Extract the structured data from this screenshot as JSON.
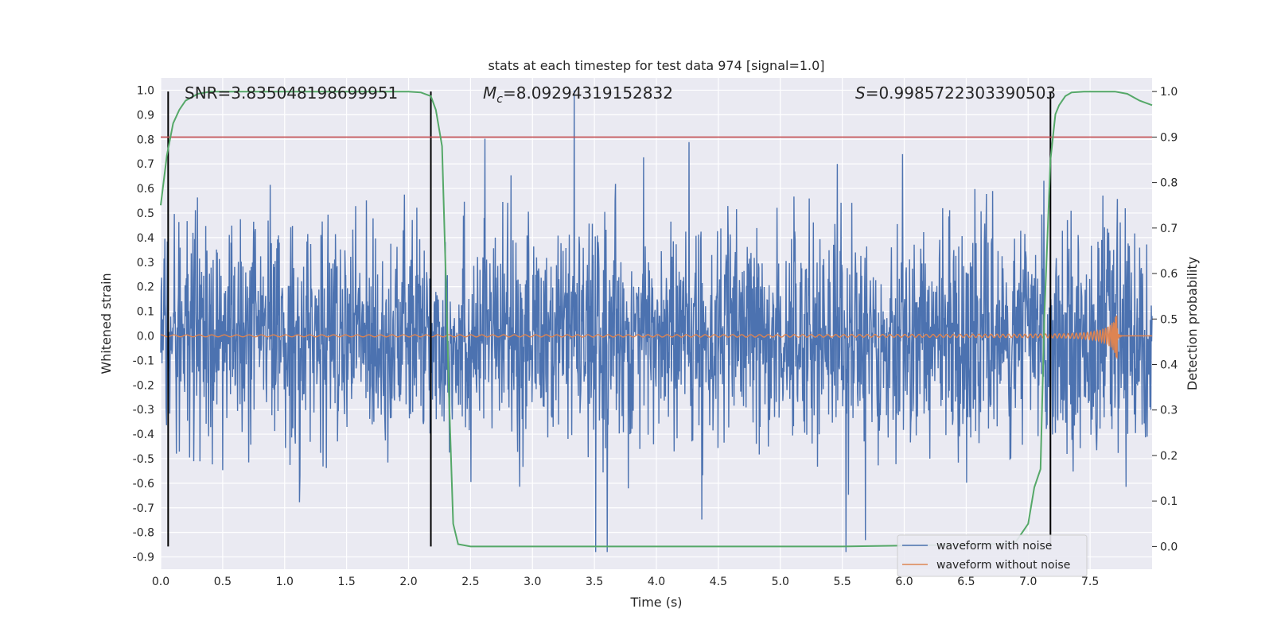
{
  "chart_data": {
    "type": "line",
    "title": "stats at each timestep for test data 974 [signal=1.0]",
    "xlabel": "Time (s)",
    "ylabel": "Whitened strain",
    "y2label": "Detection probability",
    "xlim": [
      0.0,
      8.0
    ],
    "ylim": [
      -0.95,
      1.05
    ],
    "y2lim": [
      -0.05,
      1.03
    ],
    "xticks": [
      "0.0",
      "0.5",
      "1.0",
      "1.5",
      "2.0",
      "2.5",
      "3.0",
      "3.5",
      "4.0",
      "4.5",
      "5.0",
      "5.5",
      "6.0",
      "6.5",
      "7.0",
      "7.5"
    ],
    "yticks": [
      "1.0",
      "0.9",
      "0.8",
      "0.7",
      "0.6",
      "0.5",
      "0.4",
      "0.3",
      "0.2",
      "0.1",
      "0.0",
      "-0.1",
      "-0.2",
      "-0.3",
      "-0.4",
      "-0.5",
      "-0.6",
      "-0.7",
      "-0.8",
      "-0.9"
    ],
    "y2ticks": [
      "1.0",
      "0.9",
      "0.8",
      "0.7",
      "0.6",
      "0.5",
      "0.4",
      "0.3",
      "0.2",
      "0.1",
      "0.0"
    ],
    "grid": true,
    "legend_placement": "lower-right",
    "annotations": {
      "snr": "SNR=3.835048198699951",
      "mc_symbol": "M",
      "mc_sub": "c",
      "mc_value": "=8.09294319152832",
      "s_symbol": "S",
      "s_value": "=0.9985722303390503"
    },
    "threshold_line": {
      "y2": 0.9,
      "color": "#c44e52"
    },
    "vertical_lines_x": [
      0.06,
      2.18,
      7.18
    ],
    "series": [
      {
        "name": "waveform with noise",
        "color": "#4c72b0",
        "axis": "left",
        "description_range": [
          -0.88,
          1.0
        ]
      },
      {
        "name": "waveform without noise",
        "color": "#dd8452",
        "axis": "left",
        "chirp_peak_time": 7.72,
        "chirp_peak_amplitude": 0.1
      },
      {
        "name": "",
        "color": "#55a868",
        "axis": "right",
        "points": [
          [
            0.0,
            0.75
          ],
          [
            0.05,
            0.86
          ],
          [
            0.1,
            0.93
          ],
          [
            0.15,
            0.96
          ],
          [
            0.2,
            0.98
          ],
          [
            0.3,
            0.995
          ],
          [
            0.4,
            1.0
          ],
          [
            1.0,
            1.0
          ],
          [
            1.5,
            1.0
          ],
          [
            2.0,
            1.0
          ],
          [
            2.1,
            0.998
          ],
          [
            2.18,
            0.99
          ],
          [
            2.22,
            0.96
          ],
          [
            2.27,
            0.88
          ],
          [
            2.3,
            0.6
          ],
          [
            2.33,
            0.3
          ],
          [
            2.36,
            0.05
          ],
          [
            2.4,
            0.005
          ],
          [
            2.5,
            0.0
          ],
          [
            4.0,
            0.0
          ],
          [
            5.5,
            0.0
          ],
          [
            6.0,
            0.002
          ],
          [
            6.5,
            0.004
          ],
          [
            6.8,
            0.006
          ],
          [
            6.9,
            0.01
          ],
          [
            7.0,
            0.05
          ],
          [
            7.05,
            0.13
          ],
          [
            7.1,
            0.17
          ],
          [
            7.13,
            0.5
          ],
          [
            7.18,
            0.85
          ],
          [
            7.22,
            0.95
          ],
          [
            7.25,
            0.97
          ],
          [
            7.3,
            0.99
          ],
          [
            7.35,
            0.998
          ],
          [
            7.45,
            1.0
          ],
          [
            7.7,
            1.0
          ],
          [
            7.8,
            0.995
          ],
          [
            7.9,
            0.98
          ],
          [
            8.0,
            0.97
          ]
        ]
      }
    ]
  }
}
